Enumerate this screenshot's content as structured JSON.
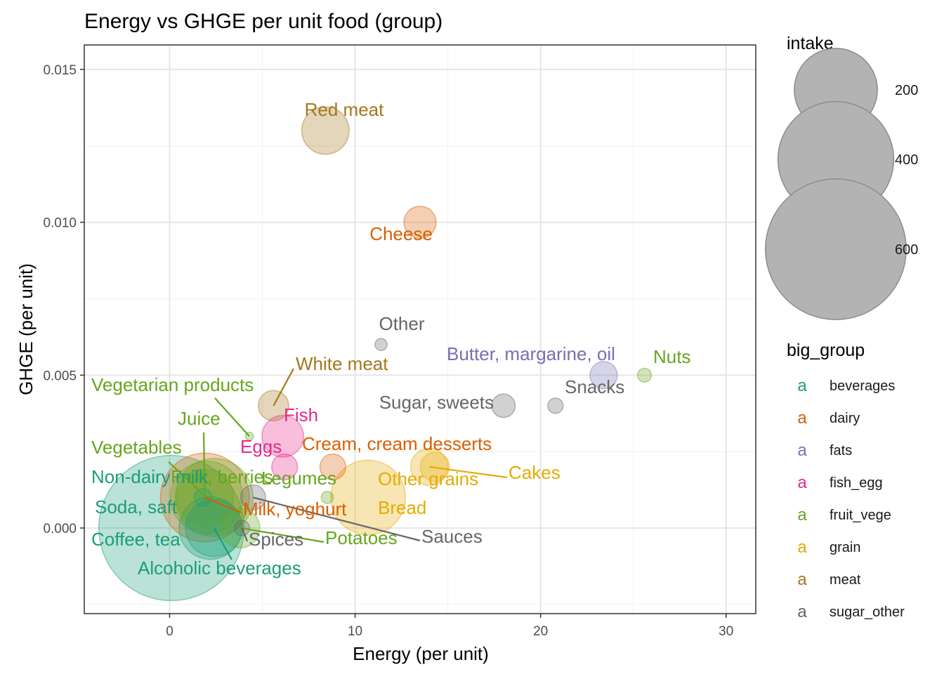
{
  "chart_data": {
    "type": "scatter",
    "title": "Energy vs GHGE per unit food (group)",
    "xlabel": "Energy (per unit)",
    "ylabel": "GHGE (per unit)",
    "xlim": [
      -4.6,
      31.6
    ],
    "ylim": [
      -0.0028,
      0.0158
    ],
    "x_ticks": [
      0,
      10,
      20,
      30
    ],
    "x_tick_labels": [
      "0",
      "10",
      "20",
      "30"
    ],
    "y_ticks": [
      0.0,
      0.005,
      0.01,
      0.015
    ],
    "y_tick_labels": [
      "0.000",
      "0.005",
      "0.010",
      "0.015"
    ],
    "grid": true,
    "size_legend": {
      "title": "intake",
      "entries": [
        {
          "label": "200",
          "value": 200
        },
        {
          "label": "400",
          "value": 400
        },
        {
          "label": "600",
          "value": 600
        }
      ]
    },
    "color_legend": {
      "title": "big_group",
      "glyph": "a",
      "entries": [
        {
          "label": "beverages",
          "color": "#1B9E77"
        },
        {
          "label": "dairy",
          "color": "#D95F02"
        },
        {
          "label": "fats",
          "color": "#7570B3"
        },
        {
          "label": "fish_egg",
          "color": "#E7298A"
        },
        {
          "label": "fruit_vege",
          "color": "#66A61E"
        },
        {
          "label": "grain",
          "color": "#E6AB02"
        },
        {
          "label": "meat",
          "color": "#A6761D"
        },
        {
          "label": "sugar_other",
          "color": "#666666"
        }
      ]
    },
    "points": [
      {
        "label": "Red meat",
        "group": "meat",
        "x": 8.4,
        "y": 0.013,
        "intake": 60
      },
      {
        "label": "Cheese",
        "group": "dairy",
        "x": 13.5,
        "y": 0.01,
        "intake": 25
      },
      {
        "label": "Other",
        "group": "sugar_other",
        "x": 11.4,
        "y": 0.006,
        "intake": 2
      },
      {
        "label": "Butter, margarine, oil",
        "group": "fats",
        "x": 23.4,
        "y": 0.005,
        "intake": 17
      },
      {
        "label": "Nuts",
        "group": "fruit_vege",
        "x": 25.6,
        "y": 0.005,
        "intake": 3
      },
      {
        "label": "Snacks",
        "group": "sugar_other",
        "x": 20.8,
        "y": 0.004,
        "intake": 4
      },
      {
        "label": "Sugar, sweets",
        "group": "sugar_other",
        "x": 18.0,
        "y": 0.004,
        "intake": 12
      },
      {
        "label": "White meat",
        "group": "meat",
        "x": 5.6,
        "y": 0.004,
        "intake": 22
      },
      {
        "label": "Vegetarian products",
        "group": "fruit_vege",
        "x": 4.3,
        "y": 0.003,
        "intake": 0.5
      },
      {
        "label": "Fish",
        "group": "fish_egg",
        "x": 6.1,
        "y": 0.003,
        "intake": 45
      },
      {
        "label": "Eggs",
        "group": "fish_egg",
        "x": 6.2,
        "y": 0.002,
        "intake": 15
      },
      {
        "label": "Cream, cream desserts",
        "group": "dairy",
        "x": 8.8,
        "y": 0.002,
        "intake": 15
      },
      {
        "label": "Cakes",
        "group": "grain",
        "x": 14.0,
        "y": 0.002,
        "intake": 35
      },
      {
        "label": "Other grains",
        "group": "grain",
        "x": 14.3,
        "y": 0.002,
        "intake": 20
      },
      {
        "label": "Legumes",
        "group": "fruit_vege",
        "x": 8.5,
        "y": 0.001,
        "intake": 2
      },
      {
        "label": "Bread",
        "group": "grain",
        "x": 10.7,
        "y": 0.001,
        "intake": 160
      },
      {
        "label": "Sauces",
        "group": "sugar_other",
        "x": 4.5,
        "y": 0.001,
        "intake": 14
      },
      {
        "label": "Juice",
        "group": "fruit_vege",
        "x": 1.9,
        "y": 0.001,
        "intake": 90
      },
      {
        "label": "Fruit, berries",
        "group": "fruit_vege",
        "x": 2.4,
        "y": 0.001,
        "intake": 175
      },
      {
        "label": "Vegetables",
        "group": "fruit_vege",
        "x": 2.0,
        "y": 0.001,
        "intake": 150
      },
      {
        "label": "Milk, yoghurt",
        "group": "dairy",
        "x": 1.9,
        "y": 0.001,
        "intake": 230
      },
      {
        "label": "Non-dairy milk",
        "group": "beverages",
        "x": 1.8,
        "y": 0.001,
        "intake": 6
      },
      {
        "label": "Soda, saft",
        "group": "beverages",
        "x": 2.2,
        "y": 0.0,
        "intake": 110
      },
      {
        "label": "Coffee, tea",
        "group": "beverages",
        "x": 0.1,
        "y": 0.0,
        "intake": 640
      },
      {
        "label": "Alcoholic beverages",
        "group": "beverages",
        "x": 2.4,
        "y": 0.0,
        "intake": 90
      },
      {
        "label": "Potatoes",
        "group": "fruit_vege",
        "x": 3.8,
        "y": 0.0,
        "intake": 40
      },
      {
        "label": "Spices",
        "group": "sugar_other",
        "x": 3.9,
        "y": 0.0,
        "intake": 4
      }
    ]
  }
}
